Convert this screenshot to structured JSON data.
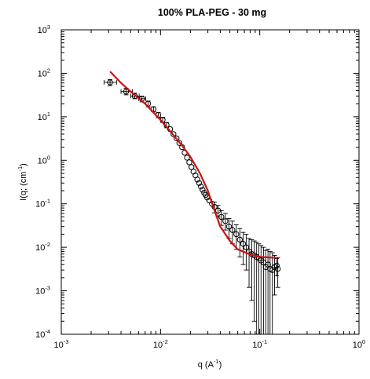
{
  "chart_data": {
    "type": "scatter",
    "title": "100% PLA-PEG - 30 mg",
    "xlabel": {
      "base": "q (A",
      "sup": "-1",
      "tail": ")"
    },
    "ylabel": {
      "base": "I(q; (cm",
      "sup": "-1",
      "tail": ")"
    },
    "x_scale": "log",
    "y_scale": "log",
    "xlim": [
      0.001,
      1
    ],
    "ylim": [
      0.0001,
      1000
    ],
    "grid": false,
    "legend": "none",
    "x_ticks": [
      {
        "base": "10",
        "exp": "-3"
      },
      {
        "base": "10",
        "exp": "-2"
      },
      {
        "base": "10",
        "exp": "-1"
      },
      {
        "base": "10",
        "exp": "0"
      }
    ],
    "y_ticks": [
      {
        "base": "10",
        "exp": "-4"
      },
      {
        "base": "10",
        "exp": "-3"
      },
      {
        "base": "10",
        "exp": "-2"
      },
      {
        "base": "10",
        "exp": "-1"
      },
      {
        "base": "10",
        "exp": "0"
      },
      {
        "base": "10",
        "exp": "1"
      },
      {
        "base": "10",
        "exp": "2"
      },
      {
        "base": "10",
        "exp": "3"
      }
    ],
    "series": [
      {
        "kind": "markers",
        "marker": "open-circle",
        "color": "#000000",
        "points": [
          {
            "x": 0.0031,
            "y": 62,
            "ylo": 52,
            "yhi": 72,
            "xlo": 0.0027,
            "xhi": 0.0036
          },
          {
            "x": 0.0045,
            "y": 38,
            "ylo": 32,
            "yhi": 45,
            "xlo": 0.004,
            "xhi": 0.0052
          },
          {
            "x": 0.0055,
            "y": 30,
            "ylo": 26,
            "yhi": 35,
            "xlo": 0.005,
            "xhi": 0.0061
          },
          {
            "x": 0.0065,
            "y": 26,
            "ylo": 22,
            "yhi": 30,
            "xlo": 0.006,
            "xhi": 0.0071
          },
          {
            "x": 0.0075,
            "y": 20,
            "ylo": 17,
            "yhi": 23
          },
          {
            "x": 0.0085,
            "y": 15,
            "ylo": 13,
            "yhi": 17
          },
          {
            "x": 0.0095,
            "y": 11,
            "ylo": 9.5,
            "yhi": 12.5
          },
          {
            "x": 0.0105,
            "y": 8.5,
            "ylo": 7.4,
            "yhi": 9.7
          },
          {
            "x": 0.0115,
            "y": 6.5,
            "ylo": 5.6,
            "yhi": 7.4
          },
          {
            "x": 0.0125,
            "y": 5.2
          },
          {
            "x": 0.0135,
            "y": 4.0
          },
          {
            "x": 0.0145,
            "y": 3.2
          },
          {
            "x": 0.0155,
            "y": 2.5
          },
          {
            "x": 0.0165,
            "y": 2.0
          },
          {
            "x": 0.0175,
            "y": 1.5
          },
          {
            "x": 0.0185,
            "y": 1.15
          },
          {
            "x": 0.0195,
            "y": 0.9
          },
          {
            "x": 0.0205,
            "y": 0.7
          },
          {
            "x": 0.0215,
            "y": 0.55
          },
          {
            "x": 0.0225,
            "y": 0.45
          },
          {
            "x": 0.0235,
            "y": 0.36
          },
          {
            "x": 0.0245,
            "y": 0.3
          },
          {
            "x": 0.0255,
            "y": 0.25
          },
          {
            "x": 0.0265,
            "y": 0.21
          },
          {
            "x": 0.0275,
            "y": 0.18
          },
          {
            "x": 0.0285,
            "y": 0.16
          },
          {
            "x": 0.0295,
            "y": 0.14
          },
          {
            "x": 0.031,
            "y": 0.12
          },
          {
            "x": 0.033,
            "y": 0.1
          },
          {
            "x": 0.035,
            "y": 0.085,
            "ylo": 0.062,
            "yhi": 0.11
          },
          {
            "x": 0.038,
            "y": 0.07,
            "ylo": 0.05,
            "yhi": 0.092
          },
          {
            "x": 0.041,
            "y": 0.05,
            "ylo": 0.032,
            "yhi": 0.07
          },
          {
            "x": 0.045,
            "y": 0.04,
            "ylo": 0.025,
            "yhi": 0.06
          },
          {
            "x": 0.049,
            "y": 0.03,
            "ylo": 0.016,
            "yhi": 0.046
          },
          {
            "x": 0.053,
            "y": 0.025,
            "ylo": 0.012,
            "yhi": 0.04
          },
          {
            "x": 0.058,
            "y": 0.02,
            "ylo": 0.009,
            "yhi": 0.033
          },
          {
            "x": 0.063,
            "y": 0.015,
            "ylo": 0.006,
            "yhi": 0.027
          },
          {
            "x": 0.068,
            "y": 0.012,
            "ylo": 0.004,
            "yhi": 0.022
          },
          {
            "x": 0.073,
            "y": 0.01,
            "ylo": 0.003,
            "yhi": 0.02
          },
          {
            "x": 0.078,
            "y": 0.008,
            "ylo": 0.0012,
            "yhi": 0.016
          },
          {
            "x": 0.083,
            "y": 0.007,
            "ylo": 0.0006,
            "yhi": 0.015
          },
          {
            "x": 0.088,
            "y": 0.0065,
            "ylo": 0.0002,
            "yhi": 0.014
          },
          {
            "x": 0.093,
            "y": 0.006,
            "ylo": 0.0001,
            "yhi": 0.013
          },
          {
            "x": 0.098,
            "y": 0.0055,
            "ylo": 0.0001,
            "yhi": 0.012
          },
          {
            "x": 0.103,
            "y": 0.005,
            "ylo": 0.0001,
            "yhi": 0.011
          },
          {
            "x": 0.109,
            "y": 0.0045,
            "ylo": 0.0001,
            "yhi": 0.01
          },
          {
            "x": 0.115,
            "y": 0.0035,
            "ylo": 0.0001,
            "yhi": 0.0085
          },
          {
            "x": 0.121,
            "y": 0.004,
            "ylo": 0.0001,
            "yhi": 0.009
          },
          {
            "x": 0.127,
            "y": 0.0032,
            "ylo": 0.0001,
            "yhi": 0.008
          },
          {
            "x": 0.134,
            "y": 0.003,
            "ylo": 0.0001,
            "yhi": 0.0075
          },
          {
            "x": 0.141,
            "y": 0.0035,
            "ylo": 0.0008,
            "yhi": 0.0065
          },
          {
            "x": 0.148,
            "y": 0.0038,
            "ylo": 0.0022,
            "yhi": 0.0055
          },
          {
            "x": 0.152,
            "y": 0.0032,
            "ylo": 0.0012,
            "yhi": 0.0058
          }
        ]
      },
      {
        "kind": "line",
        "color": "#cc1111",
        "points": [
          {
            "x": 0.0031,
            "y": 110
          },
          {
            "x": 0.004,
            "y": 60
          },
          {
            "x": 0.005,
            "y": 38
          },
          {
            "x": 0.007,
            "y": 20
          },
          {
            "x": 0.01,
            "y": 8.5
          },
          {
            "x": 0.013,
            "y": 4.2
          },
          {
            "x": 0.017,
            "y": 2.0
          },
          {
            "x": 0.02,
            "y": 1.2
          },
          {
            "x": 0.025,
            "y": 0.5
          },
          {
            "x": 0.03,
            "y": 0.2
          },
          {
            "x": 0.035,
            "y": 0.07
          },
          {
            "x": 0.04,
            "y": 0.03
          },
          {
            "x": 0.05,
            "y": 0.014
          },
          {
            "x": 0.06,
            "y": 0.009
          },
          {
            "x": 0.08,
            "y": 0.0068
          },
          {
            "x": 0.1,
            "y": 0.006
          },
          {
            "x": 0.152,
            "y": 0.0057
          }
        ]
      }
    ]
  }
}
